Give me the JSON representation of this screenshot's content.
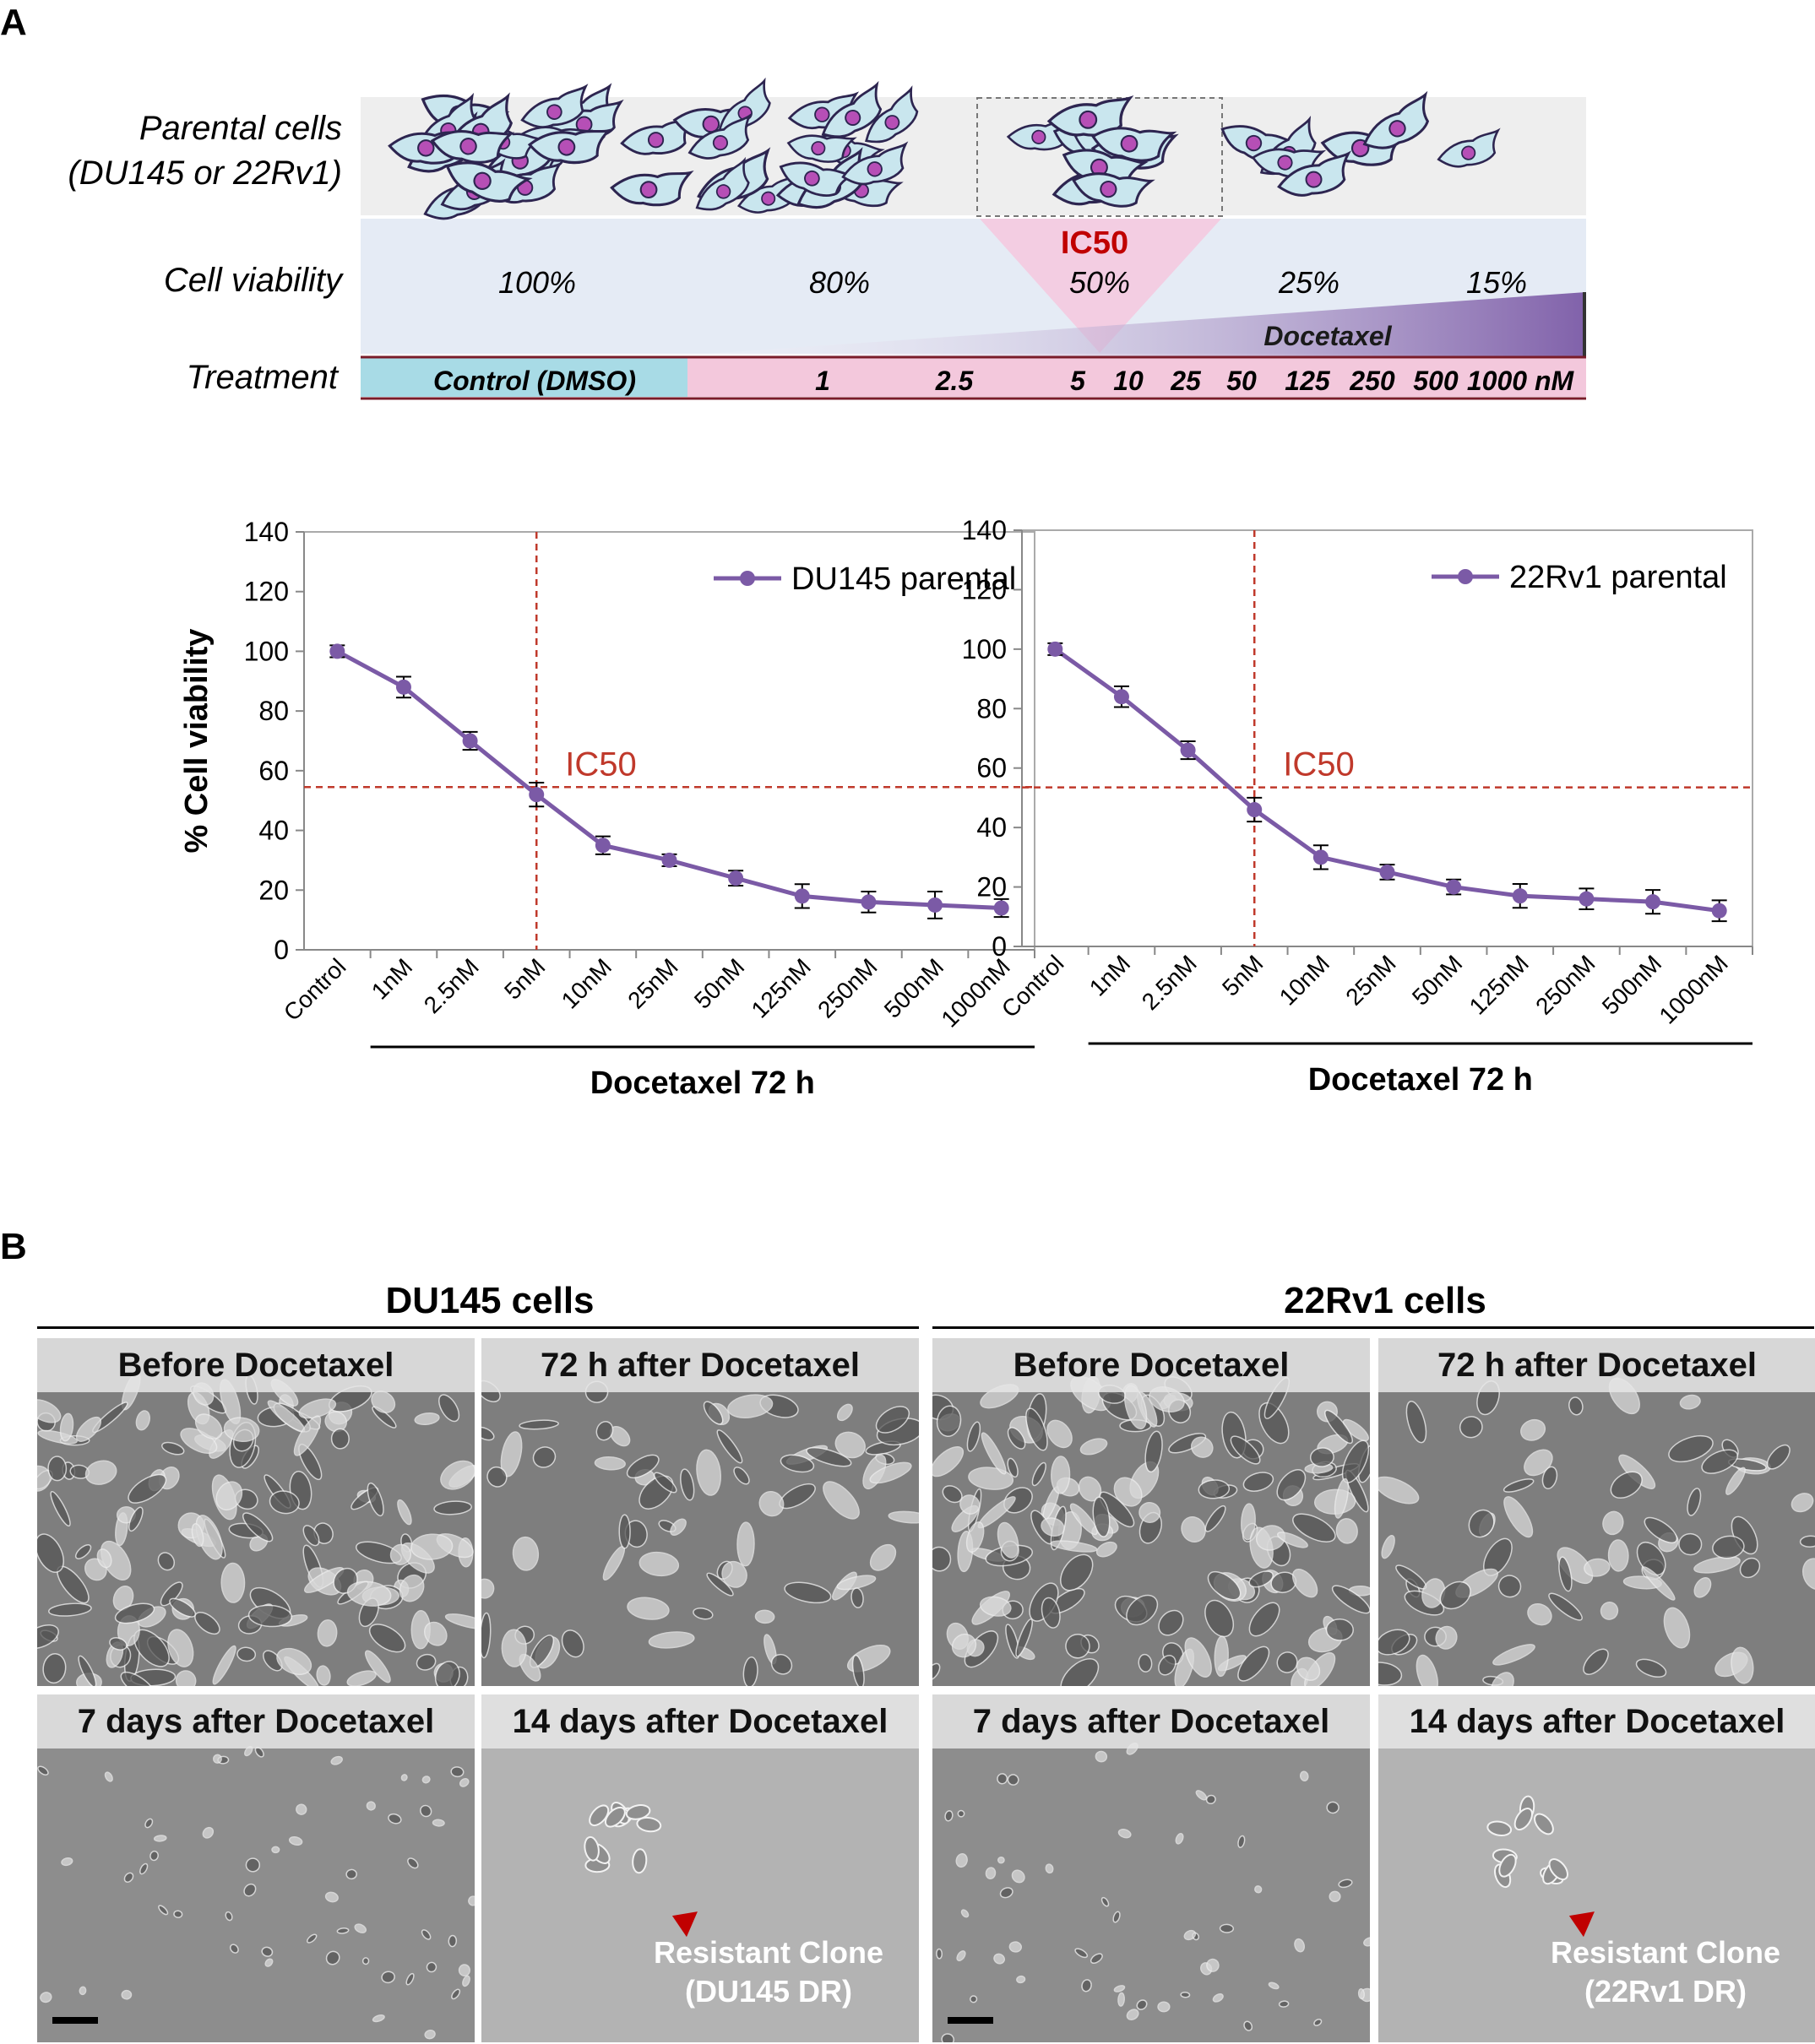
{
  "panel_a": {
    "letter": "A",
    "schematic": {
      "row_labels": {
        "parental": "Parental cells",
        "parental_sub": "(DU145 or 22Rv1)",
        "viability": "Cell viability",
        "treatment": "Treatment"
      },
      "ic50_label": "IC50",
      "viability_values": [
        "100%",
        "80%",
        "50%",
        "25%",
        "15%"
      ],
      "drug_label": "Docetaxel",
      "control_label": "Control (DMSO)",
      "doses": [
        "1",
        "2.5",
        "5",
        "10",
        "25",
        "50",
        "125",
        "250",
        "500",
        "1000 nM"
      ],
      "colors": {
        "ic50": "#c00000",
        "control_bar": "#a8dbe6",
        "dose_bar": "#f3c8dc",
        "wedge": "#7b5aa6",
        "cell_fill": "#c9e6ee",
        "nucleus": "#b64fb6"
      }
    }
  },
  "chart_data": [
    {
      "type": "line",
      "series": [
        {
          "name": "DU145 parental",
          "values": [
            100,
            88,
            70,
            52,
            35,
            30,
            24,
            18,
            16,
            15,
            14
          ],
          "errors": [
            2,
            3.5,
            3,
            4,
            3,
            2,
            2.5,
            4,
            3.5,
            4.5,
            3
          ]
        }
      ],
      "categories": [
        "Control",
        "1nM",
        "2.5nM",
        "5nM",
        "10nM",
        "25nM",
        "50nM",
        "125nM",
        "250nM",
        "500nM",
        "1000nM"
      ],
      "ylabel": "% Cell viability",
      "xlabel": "Docetaxel 72 h",
      "ylim": [
        0,
        140
      ],
      "yticks": [
        0,
        20,
        40,
        60,
        80,
        100,
        120,
        140
      ],
      "ic50_line": {
        "y": 54.5,
        "x_category": "5nM",
        "label": "IC50"
      },
      "legend": "top-right",
      "colors": {
        "series": "#7b5aa6",
        "ic50": "#c0392b"
      }
    },
    {
      "type": "line",
      "series": [
        {
          "name": "22Rv1 parental",
          "values": [
            100,
            84,
            66,
            46,
            30,
            25,
            20,
            17,
            16,
            15,
            12
          ],
          "errors": [
            2,
            3.5,
            3,
            4,
            4,
            2.5,
            2.5,
            4,
            3.5,
            4,
            3.5
          ]
        }
      ],
      "categories": [
        "Control",
        "1nM",
        "2.5nM",
        "5nM",
        "10nM",
        "25nM",
        "50nM",
        "125nM",
        "250nM",
        "500nM",
        "1000nM"
      ],
      "ylabel": "",
      "xlabel": "Docetaxel 72 h",
      "ylim": [
        0,
        140
      ],
      "yticks": [
        0,
        20,
        40,
        60,
        80,
        100,
        120,
        140
      ],
      "ic50_line": {
        "y": 53.5,
        "x_category": "5nM",
        "label": "IC50"
      },
      "legend": "top-right",
      "colors": {
        "series": "#7b5aa6",
        "ic50": "#c0392b"
      }
    }
  ],
  "panel_b": {
    "letter": "B",
    "groups": [
      "DU145 cells",
      "22Rv1 cells"
    ],
    "images": [
      {
        "label": "Before Docetaxel",
        "style": "dense"
      },
      {
        "label": "72 h after Docetaxel",
        "style": "medium"
      },
      {
        "label": "Before Docetaxel",
        "style": "dense"
      },
      {
        "label": "72 h after Docetaxel",
        "style": "medium"
      },
      {
        "label": "7 days after Docetaxel",
        "style": "sparse"
      },
      {
        "label": "14 days after Docetaxel",
        "style": "clone",
        "annotation": [
          "Resistant Clone",
          "(DU145 DR)"
        ]
      },
      {
        "label": "7 days after Docetaxel",
        "style": "sparse"
      },
      {
        "label": "14 days after Docetaxel",
        "style": "clone",
        "annotation": [
          "Resistant Clone",
          "(22Rv1 DR)"
        ]
      }
    ]
  }
}
